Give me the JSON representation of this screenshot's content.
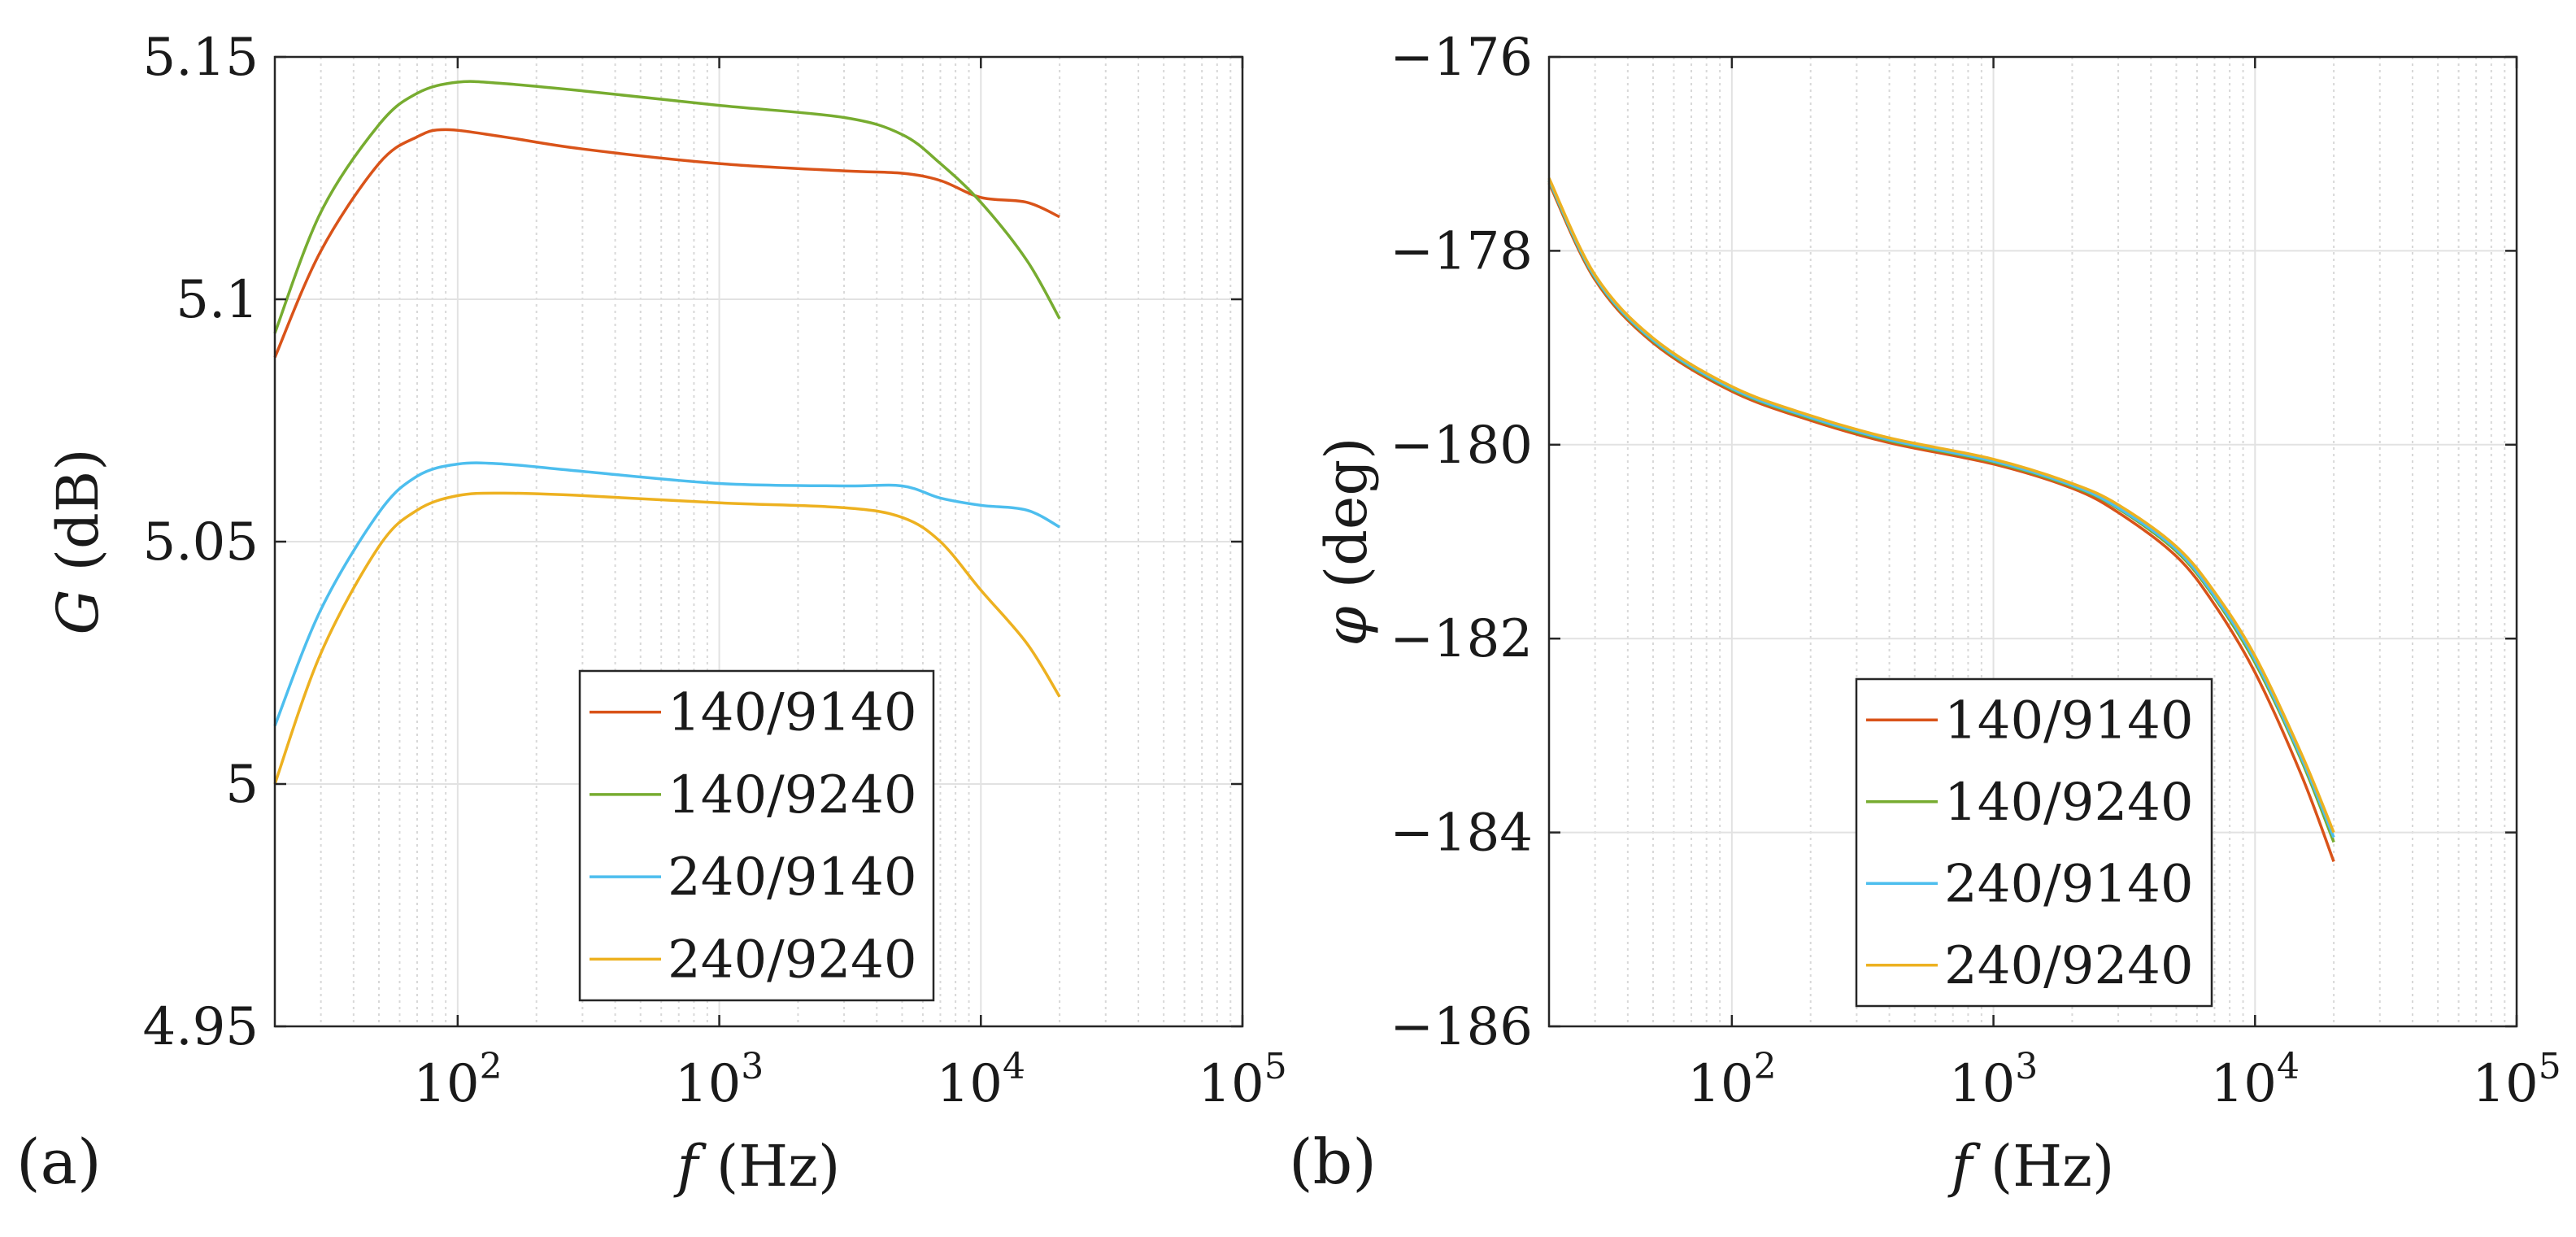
{
  "chart_data": [
    {
      "type": "line",
      "panel": "(a)",
      "xlabel_var": "f",
      "xlabel_unit": "(Hz)",
      "ylabel_var": "G",
      "ylabel_unit": "(dB)",
      "xscale": "log",
      "xlim": [
        20,
        100000
      ],
      "ylim": [
        4.95,
        5.15
      ],
      "yticks": [
        4.95,
        5,
        5.05,
        5.1,
        5.15
      ],
      "ytick_labels": [
        "4.95",
        "5",
        "5.05",
        "5.1",
        "5.15"
      ],
      "xticks": [
        {
          "value": 100,
          "base": "10",
          "exp": "2"
        },
        {
          "value": 1000,
          "base": "10",
          "exp": "3"
        },
        {
          "value": 10000,
          "base": "10",
          "exp": "4"
        },
        {
          "value": 100000,
          "base": "10",
          "exp": "5"
        }
      ],
      "grid": true,
      "legend_position": "bottom-right",
      "series": [
        {
          "name": "140/9140",
          "color": "#D95319",
          "x": [
            20,
            30,
            50,
            70,
            90,
            150,
            300,
            1000,
            3000,
            5000,
            7000,
            10000,
            15000,
            20000
          ],
          "y": [
            5.088,
            5.11,
            5.128,
            5.1335,
            5.135,
            5.1335,
            5.131,
            5.128,
            5.1265,
            5.126,
            5.1245,
            5.121,
            5.12,
            5.117
          ]
        },
        {
          "name": "140/9240",
          "color": "#77AC30",
          "x": [
            20,
            30,
            50,
            70,
            100,
            150,
            300,
            1000,
            3000,
            5000,
            7000,
            10000,
            15000,
            20000
          ],
          "y": [
            5.093,
            5.118,
            5.136,
            5.1425,
            5.1448,
            5.1445,
            5.143,
            5.14,
            5.1375,
            5.134,
            5.128,
            5.12,
            5.108,
            5.096
          ]
        },
        {
          "name": "240/9140",
          "color": "#4DBEEE",
          "x": [
            20,
            30,
            50,
            70,
            100,
            150,
            300,
            1000,
            3000,
            5000,
            7000,
            10000,
            15000,
            20000
          ],
          "y": [
            5.012,
            5.036,
            5.056,
            5.0635,
            5.066,
            5.066,
            5.0645,
            5.062,
            5.0615,
            5.0615,
            5.059,
            5.0575,
            5.0565,
            5.053
          ]
        },
        {
          "name": "240/9240",
          "color": "#EDB120",
          "x": [
            20,
            30,
            50,
            70,
            100,
            150,
            300,
            1000,
            3000,
            5000,
            7000,
            10000,
            15000,
            20000
          ],
          "y": [
            5.0,
            5.027,
            5.049,
            5.0565,
            5.0595,
            5.06,
            5.0595,
            5.058,
            5.057,
            5.055,
            5.05,
            5.04,
            5.029,
            5.018
          ]
        }
      ]
    },
    {
      "type": "line",
      "panel": "(b)",
      "xlabel_var": "f",
      "xlabel_unit": "(Hz)",
      "ylabel_var": "φ",
      "ylabel_unit": "(deg)",
      "xscale": "log",
      "xlim": [
        20,
        100000
      ],
      "ylim": [
        -186,
        -176
      ],
      "yticks": [
        -186,
        -184,
        -182,
        -180,
        -178,
        -176
      ],
      "ytick_labels": [
        "−186",
        "−184",
        "−182",
        "−180",
        "−178",
        "−176"
      ],
      "xticks": [
        {
          "value": 100,
          "base": "10",
          "exp": "2"
        },
        {
          "value": 1000,
          "base": "10",
          "exp": "3"
        },
        {
          "value": 10000,
          "base": "10",
          "exp": "4"
        },
        {
          "value": 100000,
          "base": "10",
          "exp": "5"
        }
      ],
      "grid": true,
      "legend_position": "bottom-center",
      "series": [
        {
          "name": "140/9140",
          "color": "#D95319",
          "x": [
            20,
            30,
            50,
            100,
            200,
            400,
            1000,
            2000,
            3000,
            5000,
            7000,
            10000,
            15000,
            20000
          ],
          "y": [
            -177.3,
            -178.3,
            -178.95,
            -179.45,
            -179.75,
            -179.98,
            -180.2,
            -180.45,
            -180.7,
            -181.15,
            -181.65,
            -182.35,
            -183.4,
            -184.3
          ]
        },
        {
          "name": "140/9240",
          "color": "#77AC30",
          "x": [
            20,
            30,
            50,
            100,
            200,
            400,
            1000,
            2000,
            3000,
            5000,
            7000,
            10000,
            15000,
            20000
          ],
          "y": [
            -177.28,
            -178.28,
            -178.93,
            -179.43,
            -179.73,
            -179.96,
            -180.18,
            -180.43,
            -180.66,
            -181.1,
            -181.58,
            -182.25,
            -183.25,
            -184.1
          ]
        },
        {
          "name": "240/9140",
          "color": "#4DBEEE",
          "x": [
            20,
            30,
            50,
            100,
            200,
            400,
            1000,
            2000,
            3000,
            5000,
            7000,
            10000,
            15000,
            20000
          ],
          "y": [
            -177.27,
            -178.27,
            -178.92,
            -179.42,
            -179.72,
            -179.95,
            -180.17,
            -180.42,
            -180.65,
            -181.08,
            -181.56,
            -182.22,
            -183.22,
            -184.05
          ]
        },
        {
          "name": "240/9240",
          "color": "#EDB120",
          "x": [
            20,
            30,
            50,
            100,
            200,
            400,
            1000,
            2000,
            3000,
            5000,
            7000,
            10000,
            15000,
            20000
          ],
          "y": [
            -177.25,
            -178.25,
            -178.9,
            -179.4,
            -179.7,
            -179.93,
            -180.15,
            -180.4,
            -180.62,
            -181.05,
            -181.52,
            -182.18,
            -183.18,
            -184.0
          ]
        }
      ]
    }
  ]
}
